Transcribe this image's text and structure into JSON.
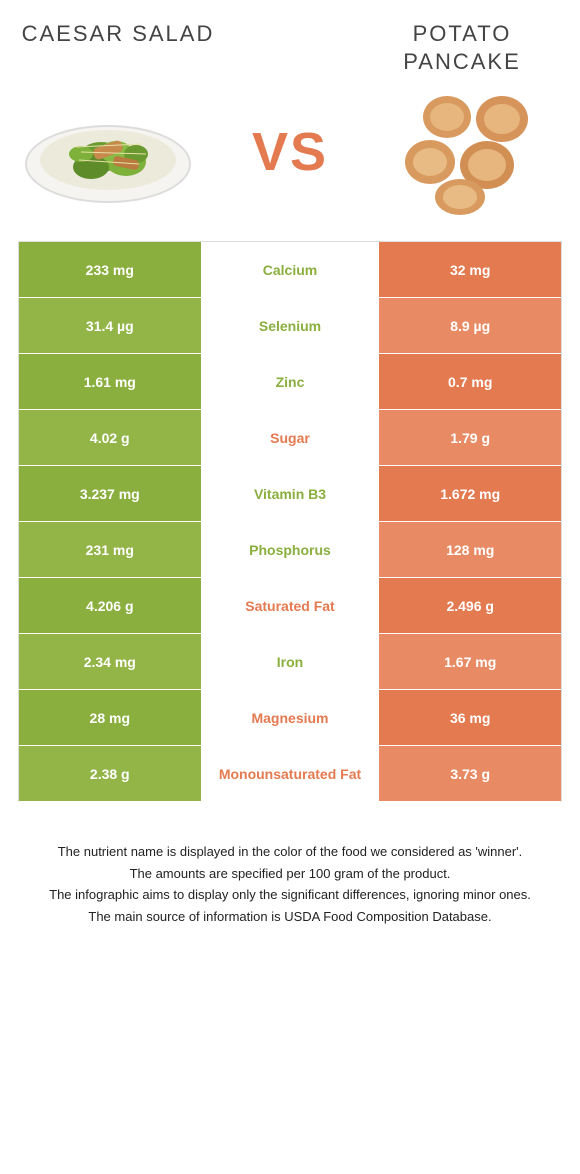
{
  "foods": {
    "left": {
      "title": "CAESAR SALAD",
      "color": "#8aaf3e"
    },
    "right": {
      "title": "POTATO PANCAKE",
      "color": "#e47a50"
    }
  },
  "vs_label": "VS",
  "vs_color": "#e47a50",
  "nutrients": [
    {
      "name": "Calcium",
      "left": "233 mg",
      "right": "32 mg",
      "winner": "left"
    },
    {
      "name": "Selenium",
      "left": "31.4 µg",
      "right": "8.9 µg",
      "winner": "left"
    },
    {
      "name": "Zinc",
      "left": "1.61 mg",
      "right": "0.7 mg",
      "winner": "left"
    },
    {
      "name": "Sugar",
      "left": "4.02 g",
      "right": "1.79 g",
      "winner": "right"
    },
    {
      "name": "Vitamin B3",
      "left": "3.237 mg",
      "right": "1.672 mg",
      "winner": "left"
    },
    {
      "name": "Phosphorus",
      "left": "231 mg",
      "right": "128 mg",
      "winner": "left"
    },
    {
      "name": "Saturated Fat",
      "left": "4.206 g",
      "right": "2.496 g",
      "winner": "right"
    },
    {
      "name": "Iron",
      "left": "2.34 mg",
      "right": "1.67 mg",
      "winner": "left"
    },
    {
      "name": "Magnesium",
      "left": "28 mg",
      "right": "36 mg",
      "winner": "right"
    },
    {
      "name": "Monounsaturated Fat",
      "left": "2.38 g",
      "right": "3.73 g",
      "winner": "right"
    }
  ],
  "left_shades": [
    "#8aaf3e",
    "#93b548"
  ],
  "right_shades": [
    "#e47a50",
    "#e88b64"
  ],
  "footer": [
    "The nutrient name is displayed in the color of the food we considered as 'winner'.",
    "The amounts are specified per 100 gram of the product.",
    "The infographic aims to display only the significant differences, ignoring minor ones.",
    "The main source of information is USDA Food Composition Database."
  ]
}
